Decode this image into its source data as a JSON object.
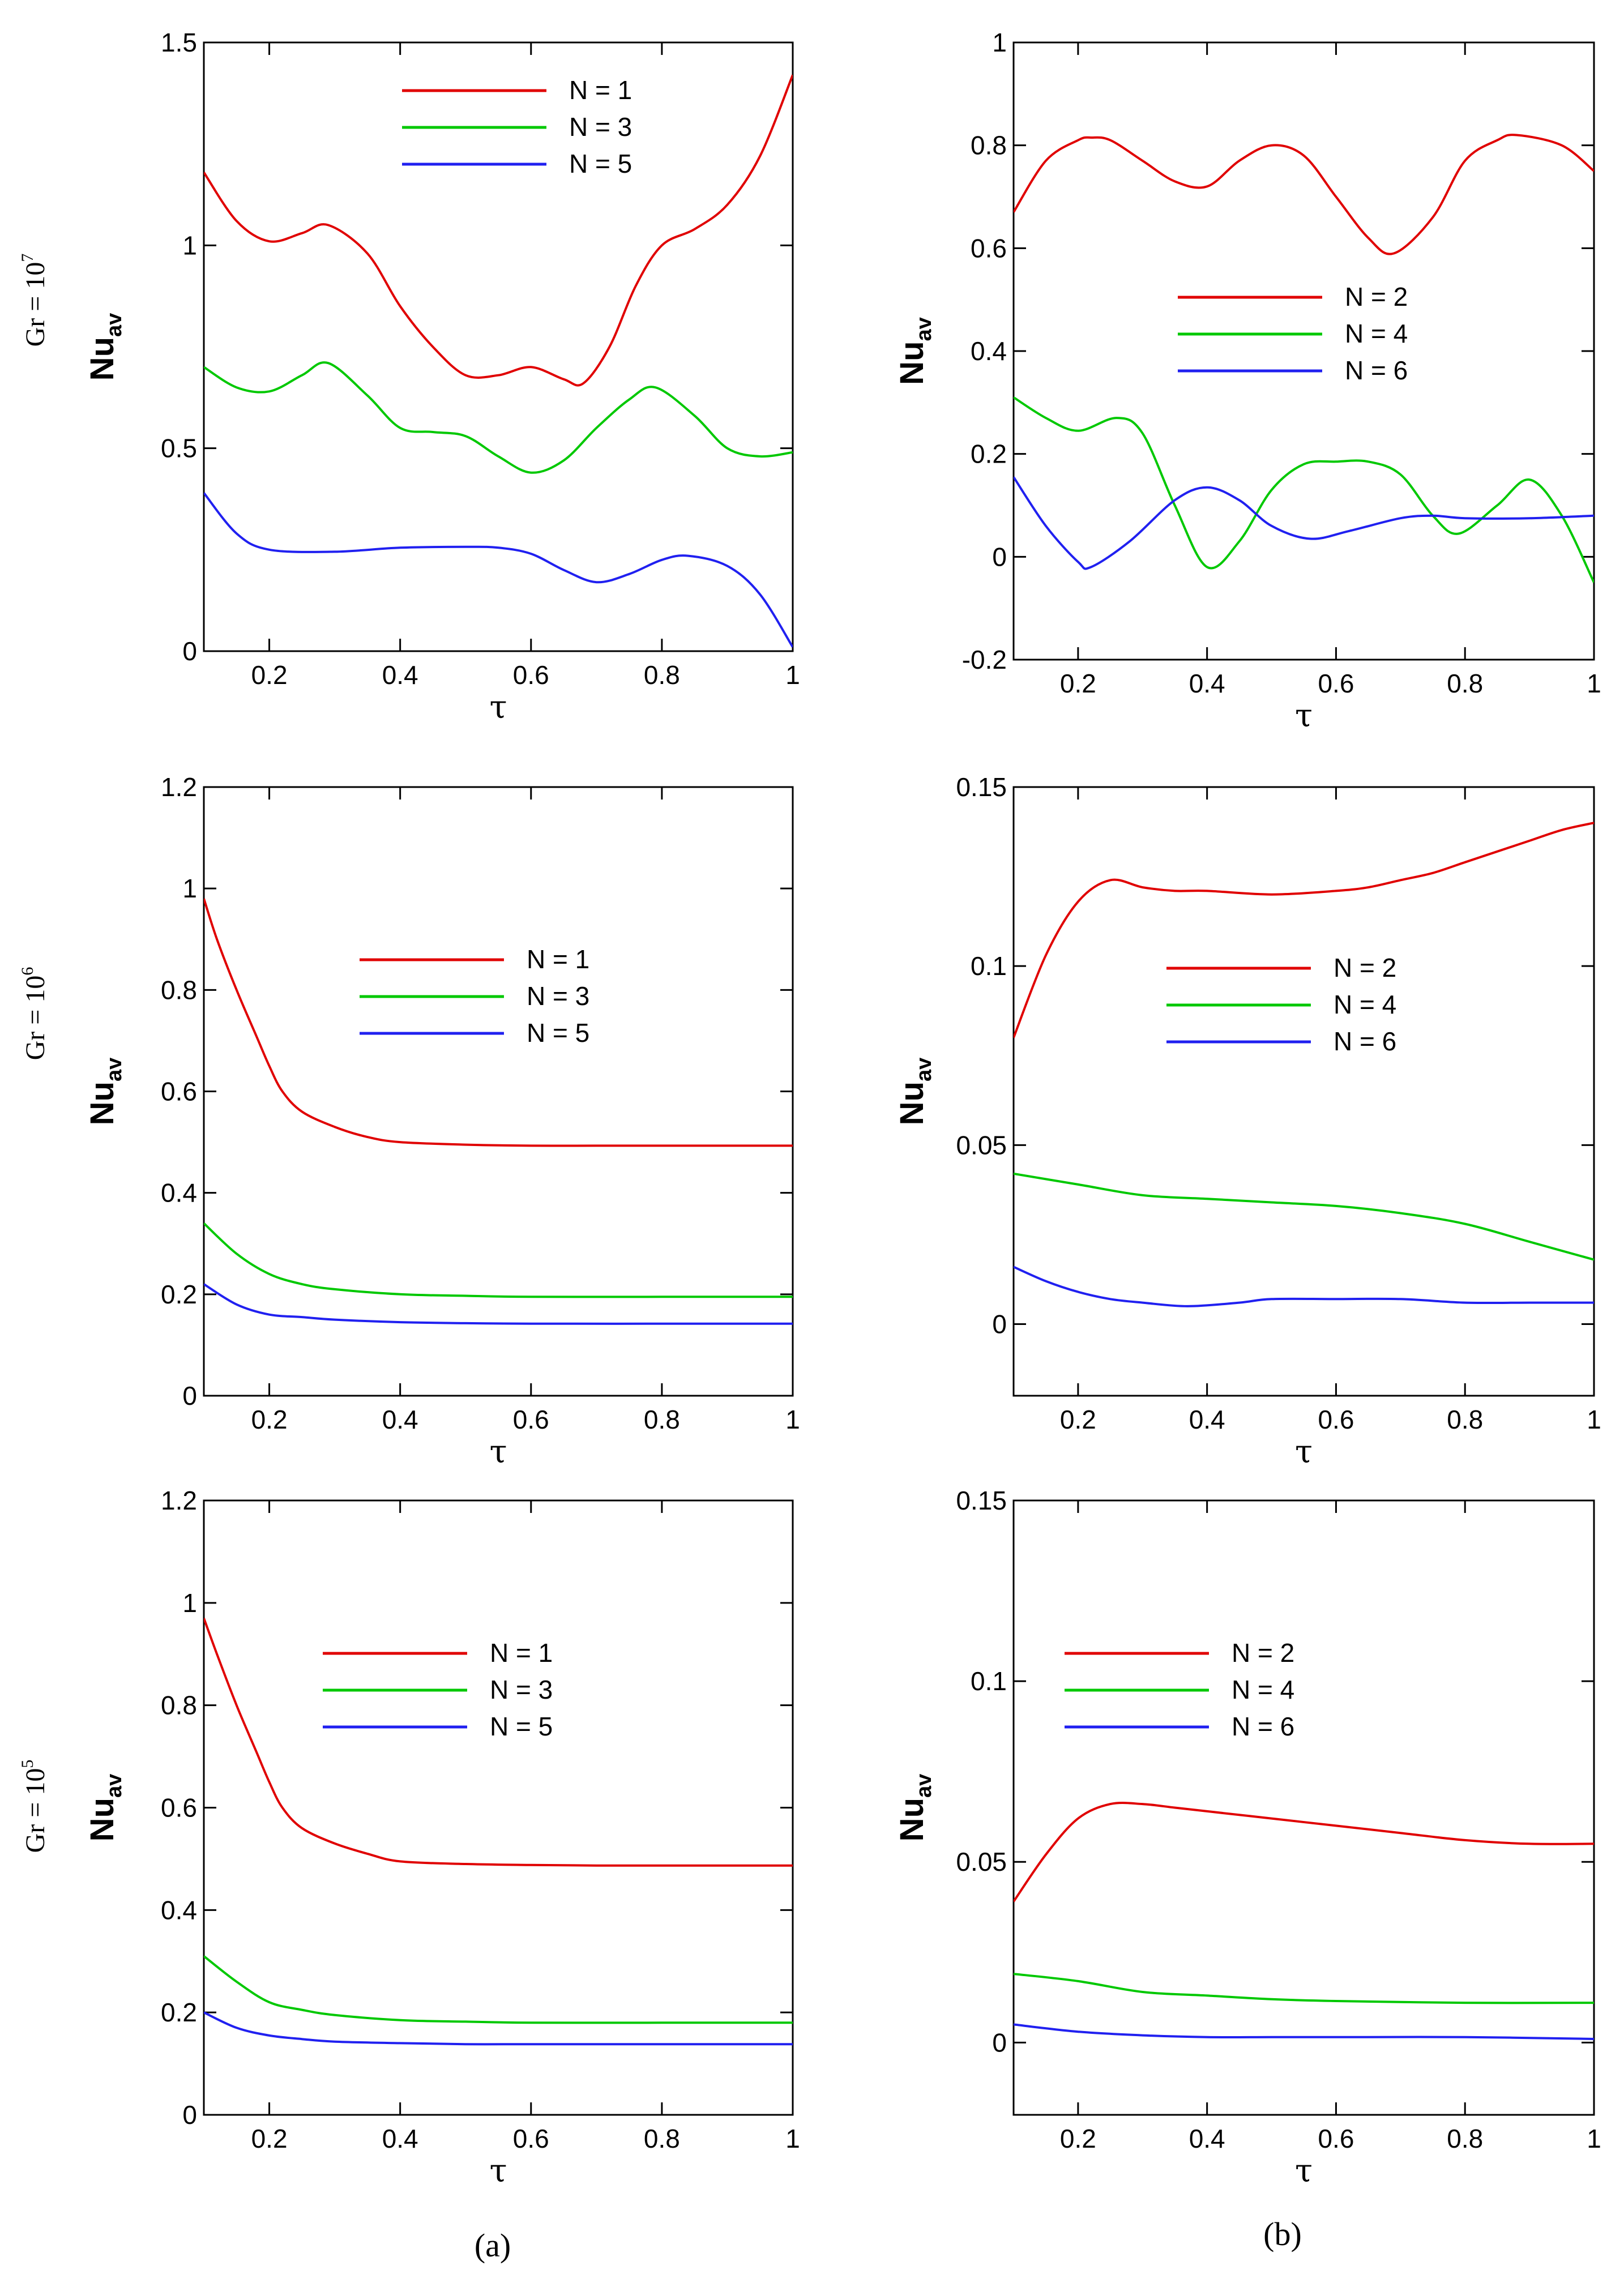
{
  "row_labels": [
    {
      "base": "Gr = 10",
      "exp": "7"
    },
    {
      "base": "Gr = 10",
      "exp": "6"
    },
    {
      "base": "Gr =   10",
      "exp": "5"
    }
  ],
  "panel_labels": [
    "(a)",
    "(b)"
  ],
  "chart_data": [
    {
      "type": "line",
      "title": "",
      "xlabel": "τ",
      "ylabel": "Nu",
      "ylabel_sub": "av",
      "xlim": [
        0.1,
        1
      ],
      "ylim": [
        0,
        1.5
      ],
      "xticks": [
        "0.2",
        "0.4",
        "0.6",
        "0.8",
        "1"
      ],
      "yticks": [
        "0",
        "0.5",
        "1",
        "1.5"
      ],
      "series": [
        {
          "name": "N = 1",
          "color": "#e00000",
          "x": [
            0.1,
            0.15,
            0.2,
            0.25,
            0.29,
            0.35,
            0.4,
            0.45,
            0.5,
            0.55,
            0.6,
            0.65,
            0.68,
            0.72,
            0.76,
            0.8,
            0.85,
            0.9,
            0.95,
            1.0
          ],
          "y": [
            1.18,
            1.06,
            1.01,
            1.03,
            1.05,
            0.98,
            0.85,
            0.75,
            0.68,
            0.68,
            0.7,
            0.67,
            0.66,
            0.75,
            0.9,
            1.0,
            1.04,
            1.1,
            1.22,
            1.42
          ]
        },
        {
          "name": "N = 3",
          "color": "#00c800",
          "x": [
            0.1,
            0.15,
            0.2,
            0.25,
            0.29,
            0.35,
            0.4,
            0.45,
            0.5,
            0.55,
            0.6,
            0.65,
            0.7,
            0.75,
            0.79,
            0.85,
            0.9,
            0.95,
            1.0
          ],
          "y": [
            0.7,
            0.65,
            0.64,
            0.68,
            0.71,
            0.63,
            0.55,
            0.54,
            0.53,
            0.48,
            0.44,
            0.47,
            0.55,
            0.62,
            0.65,
            0.58,
            0.5,
            0.48,
            0.49
          ]
        },
        {
          "name": "N = 5",
          "color": "#2020f0",
          "x": [
            0.1,
            0.15,
            0.2,
            0.3,
            0.4,
            0.5,
            0.55,
            0.6,
            0.65,
            0.7,
            0.75,
            0.8,
            0.84,
            0.9,
            0.95,
            1.0
          ],
          "y": [
            0.39,
            0.29,
            0.25,
            0.245,
            0.255,
            0.257,
            0.255,
            0.24,
            0.2,
            0.17,
            0.19,
            0.225,
            0.235,
            0.21,
            0.14,
            0.01
          ]
        }
      ]
    },
    {
      "type": "line",
      "title": "",
      "xlabel": "τ",
      "ylabel": "Nu",
      "ylabel_sub": "av",
      "xlim": [
        0.1,
        1
      ],
      "ylim": [
        -0.2,
        1
      ],
      "xticks": [
        "0.2",
        "0.4",
        "0.6",
        "0.8",
        "1"
      ],
      "yticks": [
        "-0.2",
        "0",
        "0.2",
        "0.4",
        "0.6",
        "0.8",
        "1"
      ],
      "series": [
        {
          "name": "N = 2",
          "color": "#e00000",
          "x": [
            0.1,
            0.15,
            0.2,
            0.22,
            0.25,
            0.3,
            0.35,
            0.4,
            0.45,
            0.5,
            0.55,
            0.6,
            0.65,
            0.69,
            0.75,
            0.8,
            0.85,
            0.88,
            0.95,
            1.0
          ],
          "y": [
            0.67,
            0.77,
            0.81,
            0.815,
            0.81,
            0.77,
            0.73,
            0.72,
            0.77,
            0.8,
            0.78,
            0.7,
            0.62,
            0.59,
            0.66,
            0.77,
            0.81,
            0.82,
            0.8,
            0.75
          ]
        },
        {
          "name": "N = 4",
          "color": "#00c800",
          "x": [
            0.1,
            0.15,
            0.2,
            0.26,
            0.3,
            0.35,
            0.4,
            0.45,
            0.5,
            0.55,
            0.6,
            0.65,
            0.7,
            0.75,
            0.79,
            0.85,
            0.9,
            0.95,
            1.0
          ],
          "y": [
            0.31,
            0.27,
            0.245,
            0.27,
            0.24,
            0.1,
            -0.02,
            0.03,
            0.13,
            0.18,
            0.185,
            0.185,
            0.16,
            0.08,
            0.045,
            0.1,
            0.15,
            0.08,
            -0.05
          ]
        },
        {
          "name": "N = 6",
          "color": "#2020f0",
          "x": [
            0.1,
            0.15,
            0.2,
            0.22,
            0.28,
            0.35,
            0.4,
            0.45,
            0.5,
            0.56,
            0.62,
            0.7,
            0.75,
            0.8,
            0.9,
            1.0
          ],
          "y": [
            0.155,
            0.06,
            -0.01,
            -0.02,
            0.03,
            0.11,
            0.135,
            0.11,
            0.06,
            0.035,
            0.05,
            0.075,
            0.08,
            0.075,
            0.075,
            0.08
          ]
        }
      ]
    },
    {
      "type": "line",
      "title": "",
      "xlabel": "τ",
      "ylabel": "Nu",
      "ylabel_sub": "av",
      "xlim": [
        0.1,
        1
      ],
      "ylim": [
        0,
        1.2
      ],
      "xticks": [
        "0.2",
        "0.4",
        "0.6",
        "0.8",
        "1"
      ],
      "yticks": [
        "0",
        "0.2",
        "0.4",
        "0.6",
        "0.8",
        "1",
        "1.2"
      ],
      "series": [
        {
          "name": "N = 1",
          "color": "#e00000",
          "x": [
            0.1,
            0.12,
            0.15,
            0.18,
            0.2,
            0.22,
            0.25,
            0.3,
            0.35,
            0.4,
            0.5,
            0.6,
            0.7,
            0.8,
            0.9,
            1.0
          ],
          "y": [
            0.98,
            0.9,
            0.8,
            0.71,
            0.65,
            0.6,
            0.56,
            0.53,
            0.51,
            0.5,
            0.495,
            0.493,
            0.493,
            0.493,
            0.493,
            0.493
          ]
        },
        {
          "name": "N = 3",
          "color": "#00c800",
          "x": [
            0.1,
            0.15,
            0.2,
            0.25,
            0.3,
            0.4,
            0.5,
            0.6,
            0.8,
            1.0
          ],
          "y": [
            0.34,
            0.28,
            0.24,
            0.22,
            0.21,
            0.2,
            0.197,
            0.195,
            0.195,
            0.195
          ]
        },
        {
          "name": "N = 5",
          "color": "#2020f0",
          "x": [
            0.1,
            0.15,
            0.2,
            0.25,
            0.3,
            0.4,
            0.5,
            0.6,
            0.8,
            1.0
          ],
          "y": [
            0.22,
            0.18,
            0.16,
            0.155,
            0.15,
            0.145,
            0.143,
            0.142,
            0.142,
            0.142
          ]
        }
      ]
    },
    {
      "type": "line",
      "title": "",
      "xlabel": "τ",
      "ylabel": "Nu",
      "ylabel_sub": "av",
      "xlim": [
        0.1,
        1
      ],
      "ylim": [
        -0.02,
        0.15
      ],
      "xticks": [
        "0.2",
        "0.4",
        "0.6",
        "0.8",
        "1"
      ],
      "yticks": [
        "0",
        "0.05",
        "0.1",
        "0.15"
      ],
      "series": [
        {
          "name": "N = 2",
          "color": "#e00000",
          "x": [
            0.1,
            0.15,
            0.2,
            0.25,
            0.3,
            0.35,
            0.4,
            0.5,
            0.6,
            0.65,
            0.7,
            0.75,
            0.8,
            0.85,
            0.9,
            0.95,
            1.0
          ],
          "y": [
            0.08,
            0.103,
            0.118,
            0.124,
            0.122,
            0.121,
            0.121,
            0.12,
            0.121,
            0.122,
            0.124,
            0.126,
            0.129,
            0.132,
            0.135,
            0.138,
            0.14
          ]
        },
        {
          "name": "N = 4",
          "color": "#00c800",
          "x": [
            0.1,
            0.2,
            0.3,
            0.4,
            0.5,
            0.6,
            0.7,
            0.8,
            0.9,
            1.0
          ],
          "y": [
            0.042,
            0.039,
            0.036,
            0.035,
            0.034,
            0.033,
            0.031,
            0.028,
            0.023,
            0.018
          ]
        },
        {
          "name": "N = 6",
          "color": "#2020f0",
          "x": [
            0.1,
            0.15,
            0.2,
            0.25,
            0.3,
            0.37,
            0.45,
            0.5,
            0.6,
            0.7,
            0.8,
            0.9,
            1.0
          ],
          "y": [
            0.016,
            0.012,
            0.009,
            0.007,
            0.006,
            0.005,
            0.006,
            0.007,
            0.007,
            0.007,
            0.006,
            0.006,
            0.006
          ]
        }
      ]
    },
    {
      "type": "line",
      "title": "",
      "xlabel": "τ",
      "ylabel": "Nu",
      "ylabel_sub": "av",
      "xlim": [
        0.1,
        1
      ],
      "ylim": [
        0,
        1.2
      ],
      "xticks": [
        "0.2",
        "0.4",
        "0.6",
        "0.8",
        "1"
      ],
      "yticks": [
        "0",
        "0.2",
        "0.4",
        "0.6",
        "0.8",
        "1",
        "1.2"
      ],
      "series": [
        {
          "name": "N = 1",
          "color": "#e00000",
          "x": [
            0.1,
            0.12,
            0.15,
            0.18,
            0.2,
            0.22,
            0.25,
            0.3,
            0.35,
            0.4,
            0.5,
            0.6,
            0.7,
            0.8,
            0.9,
            1.0
          ],
          "y": [
            0.97,
            0.9,
            0.8,
            0.71,
            0.65,
            0.6,
            0.56,
            0.53,
            0.51,
            0.495,
            0.49,
            0.488,
            0.487,
            0.487,
            0.487,
            0.487
          ]
        },
        {
          "name": "N = 3",
          "color": "#00c800",
          "x": [
            0.1,
            0.15,
            0.2,
            0.25,
            0.3,
            0.4,
            0.5,
            0.6,
            0.8,
            1.0
          ],
          "y": [
            0.31,
            0.26,
            0.22,
            0.205,
            0.195,
            0.185,
            0.182,
            0.18,
            0.18,
            0.18
          ]
        },
        {
          "name": "N = 5",
          "color": "#2020f0",
          "x": [
            0.1,
            0.15,
            0.2,
            0.25,
            0.3,
            0.4,
            0.5,
            0.6,
            0.8,
            1.0
          ],
          "y": [
            0.2,
            0.17,
            0.155,
            0.148,
            0.143,
            0.14,
            0.138,
            0.138,
            0.138,
            0.138
          ]
        }
      ]
    },
    {
      "type": "line",
      "title": "",
      "xlabel": "τ",
      "ylabel": "Nu",
      "ylabel_sub": "av",
      "xlim": [
        0.1,
        1
      ],
      "ylim": [
        -0.02,
        0.15
      ],
      "xticks": [
        "0.2",
        "0.4",
        "0.6",
        "0.8",
        "1"
      ],
      "yticks": [
        "0",
        "0.05",
        "0.1",
        "0.15"
      ],
      "series": [
        {
          "name": "N = 2",
          "color": "#e00000",
          "x": [
            0.1,
            0.15,
            0.2,
            0.25,
            0.3,
            0.35,
            0.4,
            0.5,
            0.6,
            0.7,
            0.8,
            0.9,
            1.0
          ],
          "y": [
            0.039,
            0.052,
            0.062,
            0.066,
            0.066,
            0.065,
            0.064,
            0.062,
            0.06,
            0.058,
            0.056,
            0.055,
            0.055
          ]
        },
        {
          "name": "N = 4",
          "color": "#00c800",
          "x": [
            0.1,
            0.2,
            0.3,
            0.4,
            0.5,
            0.6,
            0.8,
            1.0
          ],
          "y": [
            0.019,
            0.017,
            0.014,
            0.013,
            0.012,
            0.0115,
            0.011,
            0.011
          ]
        },
        {
          "name": "N = 6",
          "color": "#2020f0",
          "x": [
            0.1,
            0.2,
            0.3,
            0.4,
            0.5,
            0.6,
            0.8,
            1.0
          ],
          "y": [
            0.005,
            0.003,
            0.002,
            0.0015,
            0.0015,
            0.0015,
            0.0015,
            0.001
          ]
        }
      ]
    }
  ]
}
